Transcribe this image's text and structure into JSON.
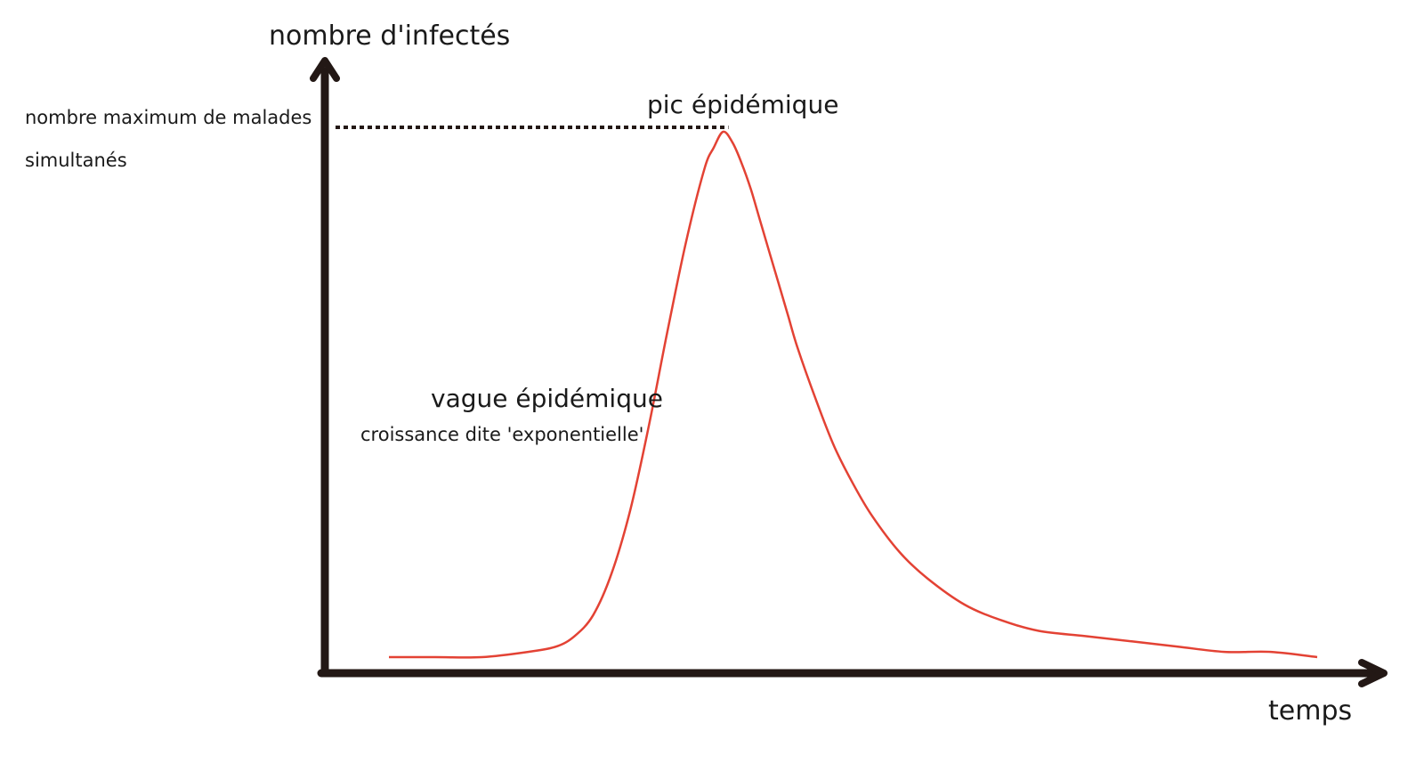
{
  "diagram": {
    "y_axis_label": "nombre d'infectés",
    "x_axis_label": "temps",
    "max_label_line1": "nombre maximum de malades",
    "max_label_line2": "simultanés",
    "peak_label": "pic épidémique",
    "wave_label": "vague épidémique",
    "growth_label": "croissance dite 'exponentielle'",
    "colors": {
      "curve": "#e34234",
      "axis": "#231815",
      "dotted_line": "#231815"
    }
  },
  "chart_data": {
    "type": "line",
    "title": "",
    "xlabel": "temps",
    "ylabel": "nombre d'infectés",
    "ticks": "none",
    "grid": false,
    "curve_shape": "epidemic wave: flat start, steep rise to a single peak, long decaying tail",
    "series": [
      {
        "color": "#e34234",
        "x": [
          0,
          5,
          10,
          15,
          18,
          20,
          22,
          24,
          26,
          28,
          30,
          32,
          34,
          35,
          36,
          37,
          38,
          39,
          40,
          41,
          42,
          43,
          44,
          46,
          48,
          50,
          52,
          55,
          58,
          62,
          66,
          70,
          75,
          80,
          85,
          90,
          95,
          100
        ],
        "y": [
          0.0,
          0.0,
          0.0,
          0.01,
          0.02,
          0.04,
          0.08,
          0.16,
          0.28,
          0.44,
          0.62,
          0.79,
          0.93,
          0.97,
          1.0,
          0.98,
          0.94,
          0.89,
          0.83,
          0.77,
          0.71,
          0.65,
          0.59,
          0.49,
          0.4,
          0.33,
          0.27,
          0.2,
          0.15,
          0.1,
          0.07,
          0.05,
          0.04,
          0.03,
          0.02,
          0.01,
          0.01,
          0.0
        ]
      }
    ]
  }
}
